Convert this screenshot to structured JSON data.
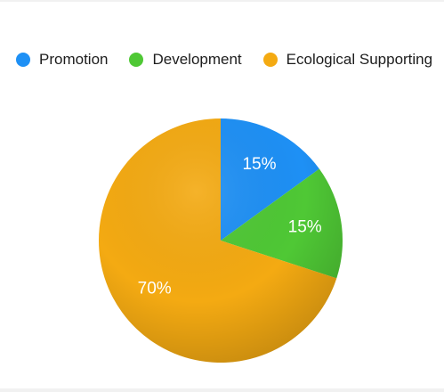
{
  "chart_data": {
    "type": "pie",
    "categories": [
      "Promotion",
      "Development",
      "Ecological Supporting"
    ],
    "values": [
      15,
      15,
      70
    ],
    "labels": [
      "15%",
      "15%",
      "70%"
    ],
    "colors": [
      "#1e90f5",
      "#4fc835",
      "#f4aa12"
    ],
    "legend_position": "top-left",
    "start_angle": "12 o'clock, clockwise",
    "title": ""
  }
}
